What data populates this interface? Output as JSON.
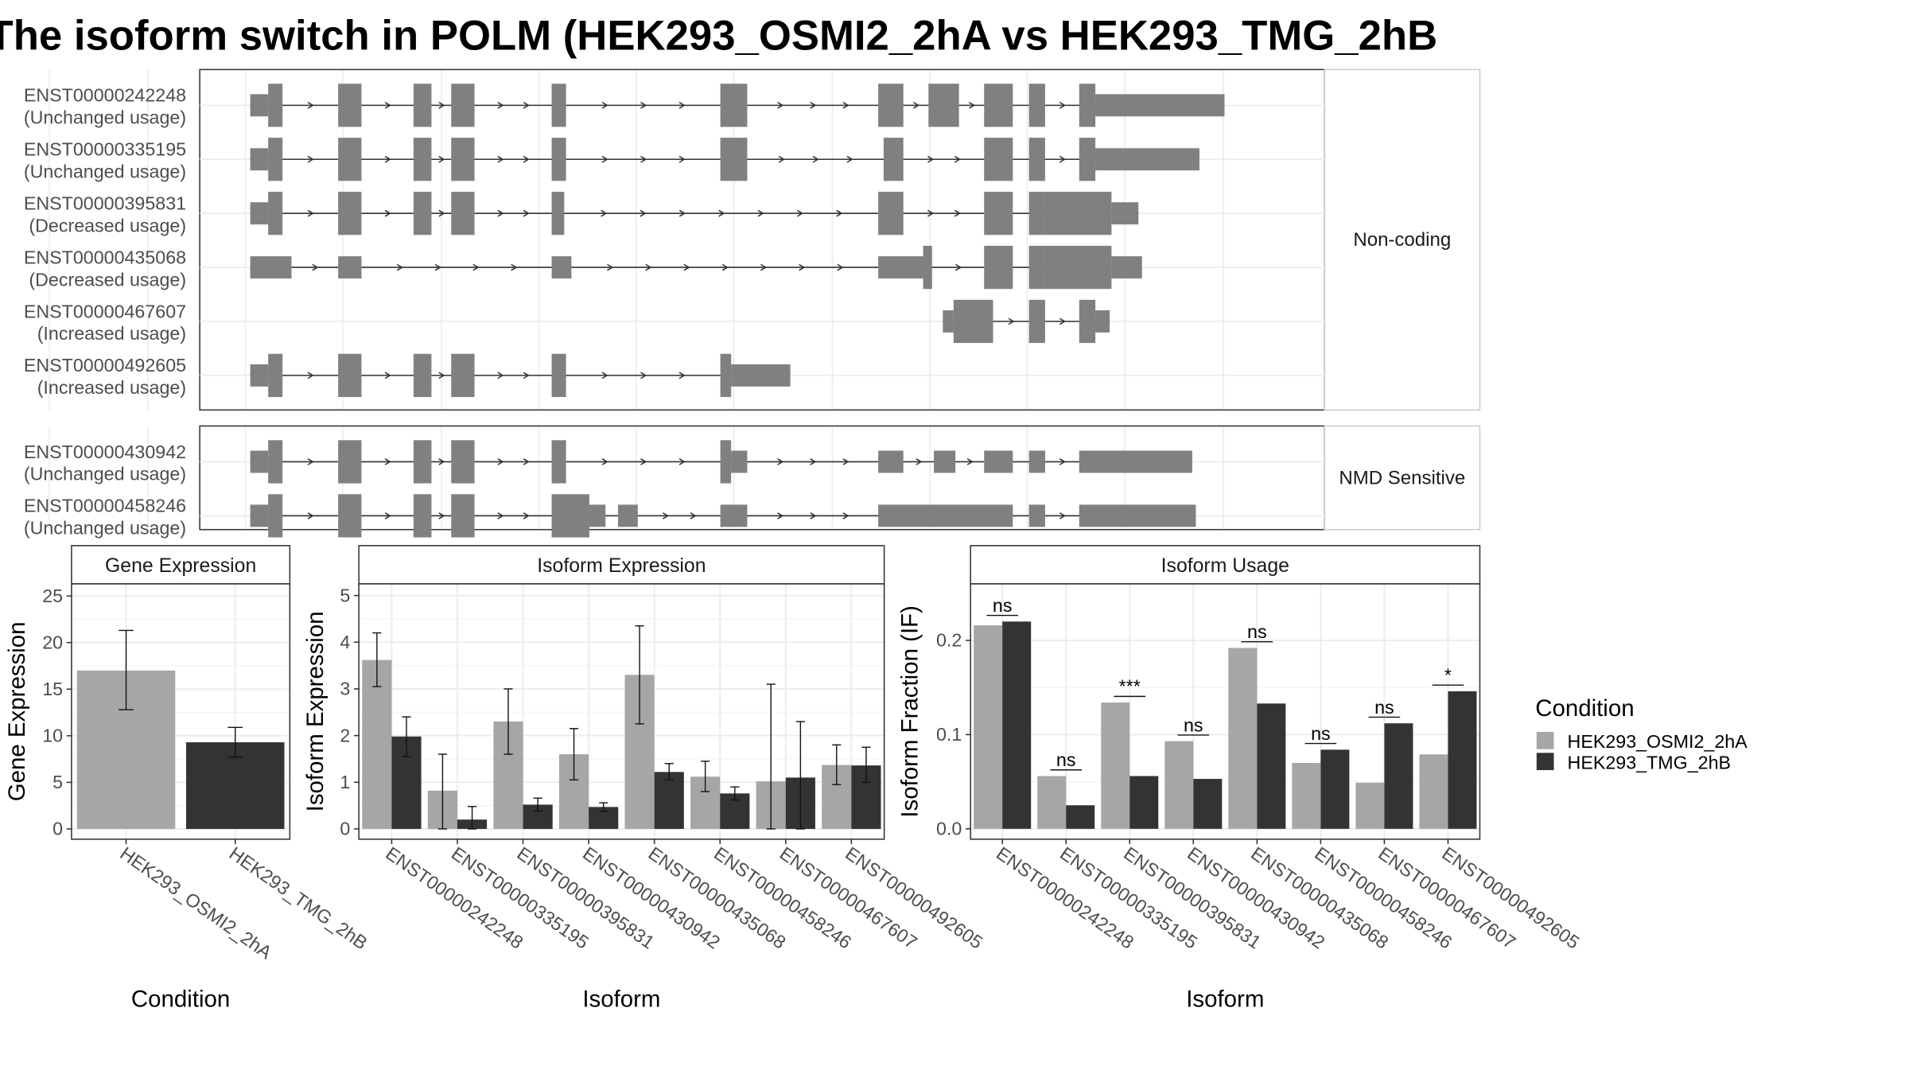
{
  "title": "The isoform switch in POLM (HEK293_OSMI2_2hA vs HEK293_TMG_2hB",
  "structure": {
    "panels": [
      {
        "label": "Non-coding",
        "isoforms": [
          {
            "id": "ENST00000242248",
            "usage": "(Unchanged usage)",
            "exons": [
              [
                2,
                12,
                "s"
              ],
              [
                12,
                20,
                "t"
              ],
              [
                51,
                64,
                "t"
              ],
              [
                93,
                103,
                "t"
              ],
              [
                114,
                127,
                "t"
              ],
              [
                170,
                178,
                "t"
              ],
              [
                264,
                279,
                "t"
              ],
              [
                352,
                366,
                "t"
              ],
              [
                380,
                397,
                "t"
              ],
              [
                411,
                427,
                "t"
              ],
              [
                436,
                445,
                "t"
              ],
              [
                464,
                473,
                "t"
              ],
              [
                473,
                545,
                "s"
              ]
            ]
          },
          {
            "id": "ENST00000335195",
            "usage": "(Unchanged usage)",
            "exons": [
              [
                2,
                12,
                "s"
              ],
              [
                12,
                20,
                "t"
              ],
              [
                51,
                64,
                "t"
              ],
              [
                93,
                103,
                "t"
              ],
              [
                114,
                127,
                "t"
              ],
              [
                170,
                178,
                "t"
              ],
              [
                264,
                279,
                "t"
              ],
              [
                355,
                366,
                "t"
              ],
              [
                411,
                427,
                "t"
              ],
              [
                436,
                445,
                "t"
              ],
              [
                464,
                473,
                "t"
              ],
              [
                473,
                531,
                "s"
              ]
            ]
          },
          {
            "id": "ENST00000395831",
            "usage": "(Decreased usage)",
            "exons": [
              [
                2,
                12,
                "s"
              ],
              [
                12,
                20,
                "t"
              ],
              [
                51,
                64,
                "t"
              ],
              [
                93,
                103,
                "t"
              ],
              [
                114,
                127,
                "t"
              ],
              [
                170,
                177,
                "t"
              ],
              [
                352,
                366,
                "t"
              ],
              [
                411,
                427,
                "t"
              ],
              [
                436,
                445,
                "t"
              ],
              [
                445,
                482,
                "t"
              ],
              [
                482,
                497,
                "s"
              ]
            ]
          },
          {
            "id": "ENST00000435068",
            "usage": "(Decreased usage)",
            "exons": [
              [
                2,
                25,
                "s"
              ],
              [
                51,
                64,
                "s"
              ],
              [
                170,
                181,
                "s"
              ],
              [
                352,
                377,
                "s"
              ],
              [
                377,
                382,
                "t"
              ],
              [
                411,
                427,
                "t"
              ],
              [
                436,
                445,
                "t"
              ],
              [
                445,
                482,
                "t"
              ],
              [
                482,
                499,
                "s"
              ]
            ]
          },
          {
            "id": "ENST00000467607",
            "usage": "(Increased usage)",
            "exons": [
              [
                388,
                394,
                "s"
              ],
              [
                394,
                416,
                "t"
              ],
              [
                436,
                445,
                "t"
              ],
              [
                464,
                473,
                "t"
              ],
              [
                473,
                481,
                "s"
              ]
            ]
          },
          {
            "id": "ENST00000492605",
            "usage": "(Increased usage)",
            "exons": [
              [
                2,
                12,
                "s"
              ],
              [
                12,
                20,
                "t"
              ],
              [
                51,
                64,
                "t"
              ],
              [
                93,
                103,
                "t"
              ],
              [
                114,
                127,
                "t"
              ],
              [
                170,
                178,
                "t"
              ],
              [
                264,
                270,
                "t"
              ],
              [
                270,
                303,
                "s"
              ]
            ]
          }
        ]
      },
      {
        "label": "NMD Sensitive",
        "isoforms": [
          {
            "id": "ENST00000430942",
            "usage": "(Unchanged usage)",
            "exons": [
              [
                2,
                12,
                "s"
              ],
              [
                12,
                20,
                "t"
              ],
              [
                51,
                64,
                "t"
              ],
              [
                93,
                103,
                "t"
              ],
              [
                114,
                127,
                "t"
              ],
              [
                170,
                178,
                "t"
              ],
              [
                264,
                270,
                "t"
              ],
              [
                270,
                279,
                "s"
              ],
              [
                352,
                366,
                "s"
              ],
              [
                383,
                395,
                "s"
              ],
              [
                411,
                427,
                "s"
              ],
              [
                436,
                445,
                "s"
              ],
              [
                464,
                527,
                "s"
              ]
            ]
          },
          {
            "id": "ENST00000458246",
            "usage": "(Unchanged usage)",
            "exons": [
              [
                2,
                12,
                "s"
              ],
              [
                12,
                20,
                "t"
              ],
              [
                51,
                64,
                "t"
              ],
              [
                93,
                103,
                "t"
              ],
              [
                114,
                127,
                "t"
              ],
              [
                170,
                191,
                "t"
              ],
              [
                191,
                200,
                "s"
              ],
              [
                207,
                218,
                "s"
              ],
              [
                264,
                279,
                "s"
              ],
              [
                352,
                427,
                "s"
              ],
              [
                436,
                445,
                "s"
              ],
              [
                464,
                529,
                "s"
              ]
            ]
          }
        ]
      }
    ]
  },
  "chart_data": [
    {
      "type": "bar",
      "title": "Gene Expression",
      "xlabel": "Condition",
      "ylabel": "Gene Expression",
      "categories": [
        "HEK293_OSMI2_2hA",
        "HEK293_TMG_2hB"
      ],
      "values": [
        17.0,
        9.3
      ],
      "error_low": [
        12.8,
        7.7
      ],
      "error_high": [
        21.3,
        10.9
      ],
      "yticks": [
        0,
        5,
        10,
        15,
        20,
        25
      ],
      "ylim": [
        -1.1,
        26.3
      ],
      "colors": [
        "#a6a6a6",
        "#333333"
      ]
    },
    {
      "type": "bar",
      "title": "Isoform Expression",
      "xlabel": "Isoform",
      "ylabel": "Isoform Expression",
      "categories": [
        "ENST00000242248",
        "ENST00000335195",
        "ENST00000395831",
        "ENST00000430942",
        "ENST00000435068",
        "ENST00000458246",
        "ENST00000467607",
        "ENST00000492605"
      ],
      "series": [
        {
          "name": "HEK293_OSMI2_2hA",
          "color": "#a6a6a6",
          "values": [
            3.62,
            0.82,
            2.3,
            1.6,
            3.3,
            1.12,
            1.02,
            1.37
          ],
          "error_low": [
            3.05,
            0.0,
            1.6,
            1.05,
            2.25,
            0.8,
            0.0,
            0.95
          ],
          "error_high": [
            4.2,
            1.6,
            3.0,
            2.15,
            4.35,
            1.45,
            3.1,
            1.8
          ]
        },
        {
          "name": "HEK293_TMG_2hB",
          "color": "#333333",
          "values": [
            1.98,
            0.2,
            0.52,
            0.47,
            1.22,
            0.76,
            1.1,
            1.36
          ],
          "error_low": [
            1.55,
            0.0,
            0.38,
            0.38,
            1.05,
            0.62,
            0.0,
            1.0
          ],
          "error_high": [
            2.4,
            0.48,
            0.66,
            0.56,
            1.4,
            0.9,
            2.3,
            1.75
          ]
        }
      ],
      "yticks": [
        0,
        1,
        2,
        3,
        4,
        5
      ],
      "ylim": [
        -0.22,
        5.25
      ]
    },
    {
      "type": "bar",
      "title": "Isoform Usage",
      "xlabel": "Isoform",
      "ylabel": "Isoform Fraction (IF)",
      "categories": [
        "ENST00000242248",
        "ENST00000335195",
        "ENST00000395831",
        "ENST00000430942",
        "ENST00000435068",
        "ENST00000458246",
        "ENST00000467607",
        "ENST00000492605"
      ],
      "series": [
        {
          "name": "HEK293_OSMI2_2hA",
          "color": "#a6a6a6",
          "values": [
            0.216,
            0.056,
            0.134,
            0.093,
            0.192,
            0.07,
            0.049,
            0.079
          ]
        },
        {
          "name": "HEK293_TMG_2hB",
          "color": "#333333",
          "values": [
            0.22,
            0.025,
            0.056,
            0.053,
            0.133,
            0.084,
            0.112,
            0.146
          ]
        }
      ],
      "significance": [
        "ns",
        "ns",
        "***",
        "ns",
        "ns",
        "ns",
        "ns",
        "*"
      ],
      "yticks": [
        0.0,
        0.1,
        0.2
      ],
      "ytick_labels": [
        "0.0",
        "0.1",
        "0.2"
      ],
      "ylim": [
        -0.011,
        0.26
      ]
    }
  ],
  "legend": {
    "title": "Condition",
    "entries": [
      {
        "label": "HEK293_OSMI2_2hA",
        "color": "#a6a6a6"
      },
      {
        "label": "HEK293_TMG_2hB",
        "color": "#333333"
      }
    ]
  }
}
